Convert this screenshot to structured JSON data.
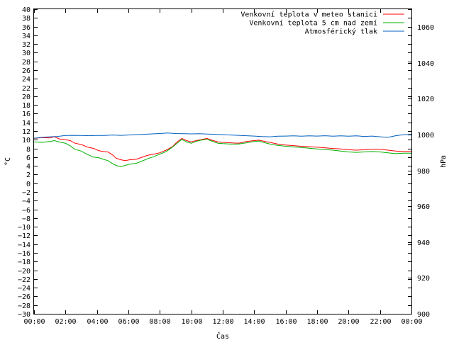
{
  "chart_data": {
    "type": "line",
    "xlabel": "Čas",
    "ylabel": "°C",
    "y2label": "hPa",
    "x_ticks": [
      "00:00",
      "02:00",
      "04:00",
      "06:00",
      "08:00",
      "10:00",
      "12:00",
      "14:00",
      "16:00",
      "18:00",
      "20:00",
      "22:00",
      "00:00"
    ],
    "x_range_hours": [
      0,
      24
    ],
    "ylim": [
      -30,
      40
    ],
    "y_ticks": [
      40,
      38,
      36,
      34,
      32,
      30,
      28,
      26,
      24,
      22,
      20,
      18,
      16,
      14,
      12,
      10,
      8,
      6,
      4,
      2,
      0,
      -2,
      -4,
      -6,
      -8,
      -10,
      -12,
      -14,
      -16,
      -18,
      -20,
      -22,
      -24,
      -26,
      -28,
      -30
    ],
    "y2lim": [
      900,
      1070
    ],
    "y2_ticks": [
      1060,
      1040,
      1020,
      1000,
      980,
      960,
      940,
      920,
      900
    ],
    "legend_position": "top-right",
    "grid": false,
    "series": [
      {
        "name": "Venkovní teplota v meteo stanici",
        "color": "#ff0000",
        "axis": "left",
        "points": [
          [
            0,
            10.3
          ],
          [
            0.5,
            10.5
          ],
          [
            1,
            10.4
          ],
          [
            1.3,
            10.7
          ],
          [
            1.6,
            10.2
          ],
          [
            2,
            10.0
          ],
          [
            2.3,
            9.8
          ],
          [
            2.6,
            9.2
          ],
          [
            3,
            8.9
          ],
          [
            3.4,
            8.3
          ],
          [
            3.8,
            8.0
          ],
          [
            4.1,
            7.5
          ],
          [
            4.4,
            7.3
          ],
          [
            4.7,
            7.2
          ],
          [
            5,
            6.5
          ],
          [
            5.2,
            5.8
          ],
          [
            5.5,
            5.4
          ],
          [
            5.8,
            5.2
          ],
          [
            6.1,
            5.4
          ],
          [
            6.5,
            5.5
          ],
          [
            6.8,
            5.9
          ],
          [
            7.2,
            6.4
          ],
          [
            7.6,
            6.7
          ],
          [
            8,
            7.0
          ],
          [
            8.4,
            7.6
          ],
          [
            8.8,
            8.4
          ],
          [
            9.1,
            9.5
          ],
          [
            9.4,
            10.3
          ],
          [
            9.7,
            9.8
          ],
          [
            10,
            9.5
          ],
          [
            10.3,
            9.8
          ],
          [
            10.6,
            10.0
          ],
          [
            11,
            10.3
          ],
          [
            11.3,
            9.9
          ],
          [
            11.7,
            9.5
          ],
          [
            12,
            9.4
          ],
          [
            12.5,
            9.3
          ],
          [
            13,
            9.2
          ],
          [
            13.5,
            9.6
          ],
          [
            14,
            9.8
          ],
          [
            14.3,
            9.9
          ],
          [
            14.7,
            9.6
          ],
          [
            15,
            9.4
          ],
          [
            15.5,
            9.0
          ],
          [
            16,
            8.8
          ],
          [
            17,
            8.5
          ],
          [
            18,
            8.3
          ],
          [
            19,
            8.0
          ],
          [
            19.5,
            7.9
          ],
          [
            20,
            7.7
          ],
          [
            20.5,
            7.6
          ],
          [
            21,
            7.7
          ],
          [
            21.5,
            7.8
          ],
          [
            22,
            7.8
          ],
          [
            22.5,
            7.6
          ],
          [
            23,
            7.4
          ],
          [
            23.5,
            7.3
          ],
          [
            24,
            7.3
          ]
        ]
      },
      {
        "name": "Venkovní teplota 5 cm nad zemí",
        "color": "#00b000",
        "axis": "left",
        "points": [
          [
            0,
            9.5
          ],
          [
            0.5,
            9.4
          ],
          [
            1,
            9.6
          ],
          [
            1.3,
            9.8
          ],
          [
            1.6,
            9.5
          ],
          [
            2,
            9.2
          ],
          [
            2.3,
            8.6
          ],
          [
            2.6,
            7.8
          ],
          [
            3,
            7.4
          ],
          [
            3.4,
            6.6
          ],
          [
            3.8,
            6.0
          ],
          [
            4.1,
            5.9
          ],
          [
            4.4,
            5.5
          ],
          [
            4.7,
            5.2
          ],
          [
            5,
            4.5
          ],
          [
            5.2,
            4.1
          ],
          [
            5.5,
            3.8
          ],
          [
            5.8,
            4.1
          ],
          [
            6.1,
            4.4
          ],
          [
            6.5,
            4.6
          ],
          [
            6.8,
            5.0
          ],
          [
            7.2,
            5.6
          ],
          [
            7.6,
            6.1
          ],
          [
            8,
            6.7
          ],
          [
            8.4,
            7.3
          ],
          [
            8.8,
            8.3
          ],
          [
            9.1,
            9.2
          ],
          [
            9.4,
            10.1
          ],
          [
            9.7,
            9.5
          ],
          [
            10,
            9.2
          ],
          [
            10.3,
            9.6
          ],
          [
            10.6,
            9.9
          ],
          [
            11,
            10.1
          ],
          [
            11.3,
            9.7
          ],
          [
            11.7,
            9.2
          ],
          [
            12,
            9.1
          ],
          [
            12.5,
            9.0
          ],
          [
            13,
            9.0
          ],
          [
            13.5,
            9.3
          ],
          [
            14,
            9.6
          ],
          [
            14.3,
            9.7
          ],
          [
            14.7,
            9.3
          ],
          [
            15,
            9.0
          ],
          [
            15.5,
            8.7
          ],
          [
            16,
            8.5
          ],
          [
            17,
            8.2
          ],
          [
            18,
            7.9
          ],
          [
            19,
            7.6
          ],
          [
            19.5,
            7.4
          ],
          [
            20,
            7.2
          ],
          [
            20.5,
            7.1
          ],
          [
            21,
            7.2
          ],
          [
            21.5,
            7.3
          ],
          [
            22,
            7.2
          ],
          [
            22.5,
            7.0
          ],
          [
            23,
            6.8
          ],
          [
            23.5,
            6.9
          ],
          [
            24,
            6.9
          ]
        ]
      },
      {
        "name": "Atmosférický tlak",
        "color": "#0060c0",
        "axis": "right",
        "points": [
          [
            0,
            998.0
          ],
          [
            0.5,
            998.5
          ],
          [
            1,
            998.8
          ],
          [
            1.5,
            999.0
          ],
          [
            2,
            999.5
          ],
          [
            2.5,
            999.6
          ],
          [
            3,
            999.5
          ],
          [
            3.5,
            999.4
          ],
          [
            4,
            999.5
          ],
          [
            4.5,
            999.5
          ],
          [
            5,
            999.8
          ],
          [
            5.5,
            999.6
          ],
          [
            6,
            999.8
          ],
          [
            6.5,
            1000.0
          ],
          [
            7,
            1000.2
          ],
          [
            7.5,
            1000.4
          ],
          [
            8,
            1000.6
          ],
          [
            8.5,
            1000.9
          ],
          [
            9,
            1000.6
          ],
          [
            9.5,
            1000.5
          ],
          [
            10,
            1000.4
          ],
          [
            10.5,
            1000.5
          ],
          [
            11,
            1000.3
          ],
          [
            11.5,
            1000.2
          ],
          [
            12,
            1000.0
          ],
          [
            12.5,
            999.8
          ],
          [
            13,
            999.6
          ],
          [
            13.5,
            999.4
          ],
          [
            14,
            999.2
          ],
          [
            14.5,
            998.9
          ],
          [
            15,
            998.8
          ],
          [
            15.5,
            999.1
          ],
          [
            16,
            999.2
          ],
          [
            16.5,
            999.3
          ],
          [
            17,
            999.1
          ],
          [
            17.5,
            999.3
          ],
          [
            18,
            999.2
          ],
          [
            18.5,
            999.4
          ],
          [
            19,
            999.1
          ],
          [
            19.5,
            999.3
          ],
          [
            20,
            999.1
          ],
          [
            20.5,
            999.3
          ],
          [
            21,
            999.0
          ],
          [
            21.5,
            999.2
          ],
          [
            22,
            998.8
          ],
          [
            22.5,
            998.5
          ],
          [
            23,
            999.4
          ],
          [
            23.5,
            1000.0
          ],
          [
            24,
            1000.1
          ]
        ]
      }
    ]
  }
}
